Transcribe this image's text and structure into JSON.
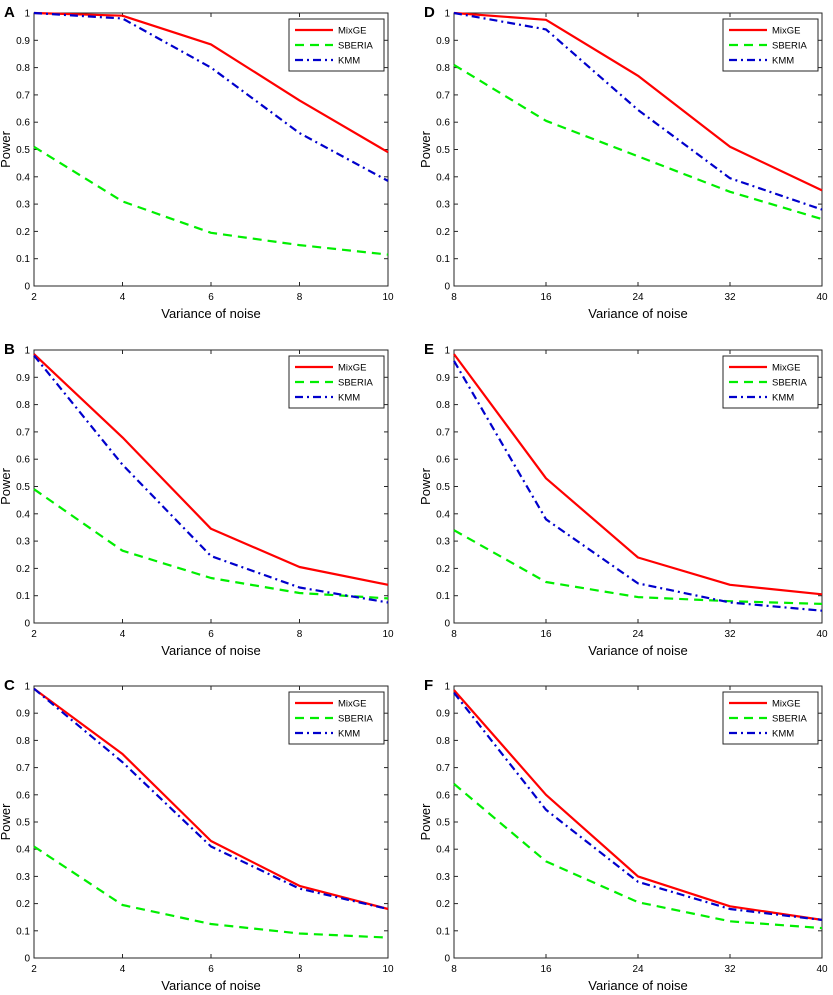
{
  "style": {
    "series_colors": [
      "#ff0000",
      "#00ee00",
      "#0000cc"
    ],
    "series_dash": [
      "",
      "9,6",
      "8,4,2,4"
    ],
    "axis_color": "#262626",
    "background": "#ffffff"
  },
  "chart_data": [
    {
      "panel": "A",
      "type": "line",
      "x": [
        2,
        4,
        6,
        8,
        10
      ],
      "xticks": [
        "2",
        "4",
        "6",
        "8",
        "10"
      ],
      "yticks": [
        "0",
        "0.1",
        "0.2",
        "0.3",
        "0.4",
        "0.5",
        "0.6",
        "0.7",
        "0.8",
        "0.9",
        "1"
      ],
      "xlim": [
        2,
        10
      ],
      "ylim": [
        0,
        1
      ],
      "xlabel": "Variance of noise",
      "ylabel": "Power",
      "title": "",
      "legend_position": "top-right",
      "series": [
        {
          "name": "MixGE",
          "values": [
            1.0,
            0.99,
            0.885,
            0.68,
            0.49
          ]
        },
        {
          "name": "SBERIA",
          "values": [
            0.51,
            0.31,
            0.195,
            0.15,
            0.115
          ]
        },
        {
          "name": "KMM",
          "values": [
            1.0,
            0.98,
            0.8,
            0.56,
            0.385
          ]
        }
      ]
    },
    {
      "panel": "B",
      "type": "line",
      "x": [
        2,
        4,
        6,
        8,
        10
      ],
      "xticks": [
        "2",
        "4",
        "6",
        "8",
        "10"
      ],
      "yticks": [
        "0",
        "0.1",
        "0.2",
        "0.3",
        "0.4",
        "0.5",
        "0.6",
        "0.7",
        "0.8",
        "0.9",
        "1"
      ],
      "xlim": [
        2,
        10
      ],
      "ylim": [
        0,
        1
      ],
      "xlabel": "Variance of noise",
      "ylabel": "Power",
      "title": "",
      "legend_position": "top-right",
      "series": [
        {
          "name": "MixGE",
          "values": [
            0.985,
            0.68,
            0.345,
            0.205,
            0.14
          ]
        },
        {
          "name": "SBERIA",
          "values": [
            0.49,
            0.265,
            0.165,
            0.11,
            0.09
          ]
        },
        {
          "name": "KMM",
          "values": [
            0.98,
            0.58,
            0.245,
            0.13,
            0.075
          ]
        }
      ]
    },
    {
      "panel": "C",
      "type": "line",
      "x": [
        2,
        4,
        6,
        8,
        10
      ],
      "xticks": [
        "2",
        "4",
        "6",
        "8",
        "10"
      ],
      "yticks": [
        "0",
        "0.1",
        "0.2",
        "0.3",
        "0.4",
        "0.5",
        "0.6",
        "0.7",
        "0.8",
        "0.9",
        "1"
      ],
      "xlim": [
        2,
        10
      ],
      "ylim": [
        0,
        1
      ],
      "xlabel": "Variance of noise",
      "ylabel": "Power",
      "title": "",
      "legend_position": "top-right",
      "series": [
        {
          "name": "MixGE",
          "values": [
            0.99,
            0.75,
            0.43,
            0.265,
            0.18
          ]
        },
        {
          "name": "SBERIA",
          "values": [
            0.41,
            0.195,
            0.125,
            0.09,
            0.075
          ]
        },
        {
          "name": "KMM",
          "values": [
            0.99,
            0.72,
            0.41,
            0.255,
            0.18
          ]
        }
      ]
    },
    {
      "panel": "D",
      "type": "line",
      "x": [
        8,
        16,
        24,
        32,
        40
      ],
      "xticks": [
        "8",
        "16",
        "24",
        "32",
        "40"
      ],
      "yticks": [
        "0",
        "0.1",
        "0.2",
        "0.3",
        "0.4",
        "0.5",
        "0.6",
        "0.7",
        "0.8",
        "0.9",
        "1"
      ],
      "xlim": [
        8,
        40
      ],
      "ylim": [
        0,
        1
      ],
      "xlabel": "Variance of noise",
      "ylabel": "Power",
      "title": "",
      "legend_position": "top-right",
      "series": [
        {
          "name": "MixGE",
          "values": [
            1.0,
            0.975,
            0.77,
            0.51,
            0.35
          ]
        },
        {
          "name": "SBERIA",
          "values": [
            0.81,
            0.605,
            0.475,
            0.345,
            0.245
          ]
        },
        {
          "name": "KMM",
          "values": [
            1.0,
            0.94,
            0.645,
            0.395,
            0.28
          ]
        }
      ]
    },
    {
      "panel": "E",
      "type": "line",
      "x": [
        8,
        16,
        24,
        32,
        40
      ],
      "xticks": [
        "8",
        "16",
        "24",
        "32",
        "40"
      ],
      "yticks": [
        "0",
        "0.1",
        "0.2",
        "0.3",
        "0.4",
        "0.5",
        "0.6",
        "0.7",
        "0.8",
        "0.9",
        "1"
      ],
      "xlim": [
        8,
        40
      ],
      "ylim": [
        0,
        1
      ],
      "xlabel": "Variance of noise",
      "ylabel": "Power",
      "title": "",
      "legend_position": "top-right",
      "series": [
        {
          "name": "MixGE",
          "values": [
            0.985,
            0.53,
            0.24,
            0.14,
            0.105
          ]
        },
        {
          "name": "SBERIA",
          "values": [
            0.34,
            0.15,
            0.095,
            0.08,
            0.07
          ]
        },
        {
          "name": "KMM",
          "values": [
            0.96,
            0.38,
            0.145,
            0.075,
            0.045
          ]
        }
      ]
    },
    {
      "panel": "F",
      "type": "line",
      "x": [
        8,
        16,
        24,
        32,
        40
      ],
      "xticks": [
        "8",
        "16",
        "24",
        "32",
        "40"
      ],
      "yticks": [
        "0",
        "0.1",
        "0.2",
        "0.3",
        "0.4",
        "0.5",
        "0.6",
        "0.7",
        "0.8",
        "0.9",
        "1"
      ],
      "xlim": [
        8,
        40
      ],
      "ylim": [
        0,
        1
      ],
      "xlabel": "Variance of noise",
      "ylabel": "Power",
      "title": "",
      "legend_position": "top-right",
      "series": [
        {
          "name": "MixGE",
          "values": [
            0.985,
            0.6,
            0.3,
            0.19,
            0.14
          ]
        },
        {
          "name": "SBERIA",
          "values": [
            0.64,
            0.355,
            0.205,
            0.135,
            0.11
          ]
        },
        {
          "name": "KMM",
          "values": [
            0.975,
            0.545,
            0.28,
            0.18,
            0.14
          ]
        }
      ]
    }
  ]
}
